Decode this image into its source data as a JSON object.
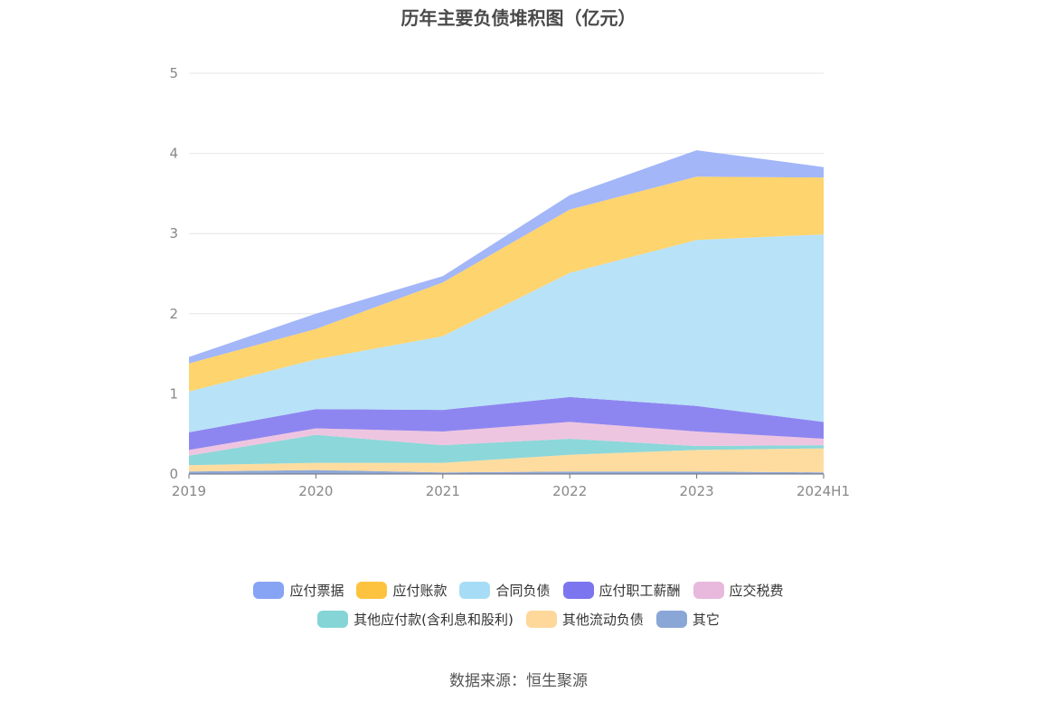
{
  "chart_data": {
    "type": "area",
    "title": "历年主要负债堆积图（亿元）",
    "categories": [
      "2019",
      "2020",
      "2021",
      "2022",
      "2023",
      "2024H1"
    ],
    "ylim": [
      0,
      5
    ],
    "yticks": [
      "0",
      "1",
      "2",
      "3",
      "4",
      "5"
    ],
    "grid": true,
    "legend_position": "bottom",
    "series": [
      {
        "name": "其它",
        "color": "#8ea8d9",
        "values": [
          0.03,
          0.05,
          0.02,
          0.03,
          0.03,
          0.02
        ]
      },
      {
        "name": "其他流动负债",
        "color": "#fedca0",
        "values": [
          0.08,
          0.09,
          0.12,
          0.21,
          0.27,
          0.3
        ]
      },
      {
        "name": "其他应付款(含利息和股利)",
        "color": "#8cd7d9",
        "values": [
          0.12,
          0.35,
          0.22,
          0.2,
          0.05,
          0.04
        ]
      },
      {
        "name": "应交税费",
        "color": "#eec5e0",
        "values": [
          0.07,
          0.08,
          0.17,
          0.21,
          0.18,
          0.08
        ]
      },
      {
        "name": "应付职工薪酬",
        "color": "#8e86f0",
        "values": [
          0.22,
          0.24,
          0.27,
          0.31,
          0.32,
          0.21
        ]
      },
      {
        "name": "合同负债",
        "color": "#b8e2f8",
        "values": [
          0.51,
          0.62,
          0.92,
          1.55,
          2.07,
          2.34
        ]
      },
      {
        "name": "应付账款",
        "color": "#fed46e",
        "values": [
          0.35,
          0.38,
          0.67,
          0.79,
          0.79,
          0.71
        ]
      },
      {
        "name": "应付票据",
        "color": "#a2b6f8",
        "values": [
          0.08,
          0.19,
          0.08,
          0.18,
          0.33,
          0.13
        ]
      }
    ]
  },
  "legend": {
    "row1": [
      {
        "name": "应付票据",
        "color": "#86a3f4"
      },
      {
        "name": "应付账款",
        "color": "#fdc33f"
      },
      {
        "name": "合同负债",
        "color": "#a6dcf6"
      },
      {
        "name": "应付职工薪酬",
        "color": "#7b75ef"
      },
      {
        "name": "应交税费",
        "color": "#e8b9dc"
      }
    ],
    "row2": [
      {
        "name": "其他应付款(含利息和股利)",
        "color": "#85d5d6"
      },
      {
        "name": "其他流动负债",
        "color": "#fed79b"
      },
      {
        "name": "其它",
        "color": "#8aa6d6"
      }
    ]
  },
  "source": "数据来源：恒生聚源"
}
